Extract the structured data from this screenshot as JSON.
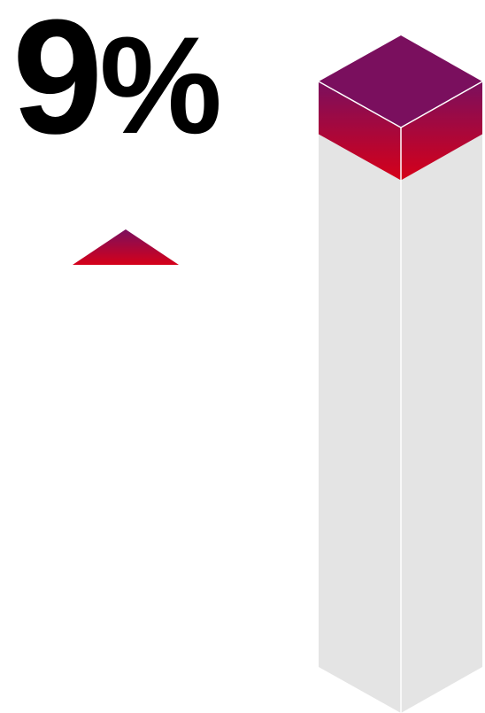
{
  "headline": {
    "number": "9",
    "unit": "%"
  },
  "trend": {
    "direction": "up",
    "icon": "triangle-up-icon"
  },
  "colors": {
    "accent_top": "#7a0f5e",
    "accent_bottom": "#d60019",
    "bar_side": "#e4e4e4",
    "edge": "#ffffff",
    "text": "#000000"
  },
  "chart_data": {
    "type": "bar",
    "categories": [
      ""
    ],
    "values": [
      9
    ],
    "ylim": [
      0,
      100
    ],
    "unit": "%",
    "grid": false,
    "legend": "none"
  }
}
